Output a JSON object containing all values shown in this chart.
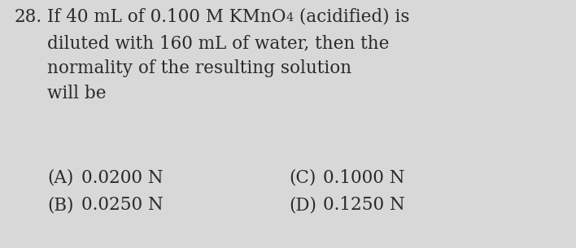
{
  "background_color": "#d8d8d8",
  "question_number": "28.",
  "line1_before_sub": "If 40 mL of 0.100 M KMnO",
  "line1_sub": "4",
  "line1_after_sub": " (acidified) is",
  "line2": "diluted with 160 mL of water, then the",
  "line3": "normality of the resulting solution",
  "line4": "will be",
  "optA_label": "(A)",
  "optA_val": "0.0200 N",
  "optB_label": "(B)",
  "optB_val": "0.0250 N",
  "optC_label": "(C)",
  "optC_val": "0.1000 N",
  "optD_label": "(D)",
  "optD_val": "0.1250 N",
  "text_color": "#2a2a2a",
  "font_size_main": 15.5,
  "font_size_sub": 10.5,
  "font_size_options": 15.5,
  "font_family": "DejaVu Serif"
}
